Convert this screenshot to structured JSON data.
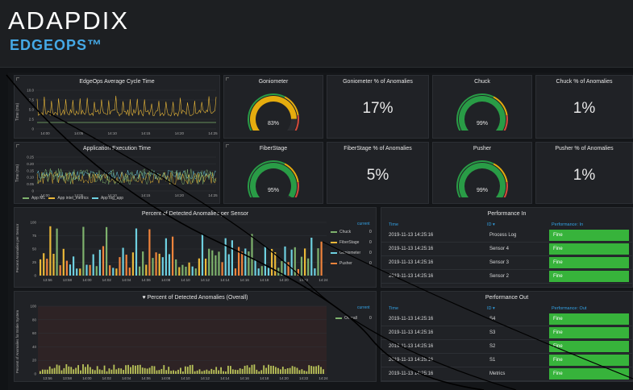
{
  "header": {
    "brand": "ADAPDIX",
    "product": "EDGEOPS™"
  },
  "panels": {
    "cycle_time": {
      "title": "EdgeOps Average Cycle Time",
      "ylabel": "Time (ms)",
      "yticks": [
        "10.0",
        "7.5",
        "5.0",
        "2.5",
        "0"
      ],
      "xticks": [
        "14:00",
        "14:05",
        "14:10",
        "14:15",
        "14:20",
        "14:25"
      ]
    },
    "app_exec": {
      "title": "Application Execution Time",
      "ylabel": "Time (ms)",
      "yticks": [
        "0.25",
        "0.20",
        "0.15",
        "0.10",
        "0.05",
        "0"
      ],
      "xticks": [
        "14:00",
        "14:05",
        "14:10",
        "14:15",
        "14:20",
        "14:25"
      ],
      "legend": [
        {
          "name": "App ML",
          "color": "#7eb26d"
        },
        {
          "name": "App intel_metrics",
          "color": "#eab839"
        },
        {
          "name": "App log_app",
          "color": "#6ed0e0"
        }
      ]
    },
    "goniometer": {
      "title": "Goniometer",
      "value": "83%",
      "fraction": 0.83,
      "color": "#e5ac0e"
    },
    "goniometer_pct": {
      "title": "Goniometer % of Anomalies",
      "value": "17%"
    },
    "chuck": {
      "title": "Chuck",
      "value": "99%",
      "fraction": 0.99,
      "color": "#299c46"
    },
    "chuck_pct": {
      "title": "Chuck % of Anomalies",
      "value": "1%"
    },
    "fiberstage": {
      "title": "FiberStage",
      "value": "95%",
      "fraction": 0.95,
      "color": "#299c46"
    },
    "fiberstage_pct": {
      "title": "FiberStage % of Anomalies",
      "value": "5%"
    },
    "pusher": {
      "title": "Pusher",
      "value": "99%",
      "fraction": 0.99,
      "color": "#299c46"
    },
    "pusher_pct": {
      "title": "Pusher % of Anomalies",
      "value": "1%"
    },
    "per_sensor": {
      "title": "Percent of Detected Anomalies per Sensor",
      "ylabel": "Percent Anomalies per Sensor",
      "yticks": [
        "100",
        "75",
        "50",
        "25",
        "0"
      ],
      "xticks": [
        "13:56",
        "13:58",
        "14:00",
        "14:02",
        "14:04",
        "14:06",
        "14:08",
        "14:10",
        "14:12",
        "14:14",
        "14:16",
        "14:18",
        "14:20",
        "14:22",
        "14:24"
      ],
      "legend_header": "current",
      "legend": [
        {
          "name": "Chuck",
          "value": "0",
          "color": "#7eb26d"
        },
        {
          "name": "FiberStage",
          "value": "0",
          "color": "#eab839"
        },
        {
          "name": "Goniometer",
          "value": "0",
          "color": "#6ed0e0"
        },
        {
          "name": "Pusher",
          "value": "0",
          "color": "#ef843c"
        }
      ]
    },
    "overall": {
      "title": "Percent of Detected Anomalies (Overall)",
      "ylabel": "Percent of Anomalies for Entire System",
      "yticks": [
        "100",
        "80",
        "60",
        "40",
        "20",
        "0"
      ],
      "xticks": [
        "13:56",
        "13:58",
        "14:00",
        "14:02",
        "14:04",
        "14:06",
        "14:08",
        "14:10",
        "14:12",
        "14:14",
        "14:16",
        "14:18",
        "14:20",
        "14:22",
        "14:24"
      ],
      "legend_header": "current",
      "legend": [
        {
          "name": "Overall",
          "value": "0",
          "color": "#7eb26d"
        }
      ]
    },
    "perf_in": {
      "title": "Performance In",
      "columns": [
        "Time",
        "ID ▾",
        "Performance: In"
      ],
      "rows": [
        {
          "time": "2019-11-13 14:25:16",
          "id": "Process Log",
          "perf": "Fine"
        },
        {
          "time": "2019-11-13 14:25:16",
          "id": "Sensor 4",
          "perf": "Fine"
        },
        {
          "time": "2019-11-13 14:25:16",
          "id": "Sensor 3",
          "perf": "Fine"
        },
        {
          "time": "2019-11-13 14:25:16",
          "id": "Sensor 2",
          "perf": "Fine"
        }
      ]
    },
    "perf_out": {
      "title": "Performance Out",
      "columns": [
        "Time",
        "ID ▾",
        "Performance: Out"
      ],
      "rows": [
        {
          "time": "2019-11-13 14:25:16",
          "id": "S4",
          "perf": "Fine"
        },
        {
          "time": "2019-11-13 14:25:16",
          "id": "S3",
          "perf": "Fine"
        },
        {
          "time": "2019-11-13 14:25:16",
          "id": "S2",
          "perf": "Fine"
        },
        {
          "time": "2019-11-13 14:25:16",
          "id": "S1",
          "perf": "Fine"
        },
        {
          "time": "2019-11-13 14:25:16",
          "id": "Metrics",
          "perf": "Fine"
        }
      ]
    }
  }
}
